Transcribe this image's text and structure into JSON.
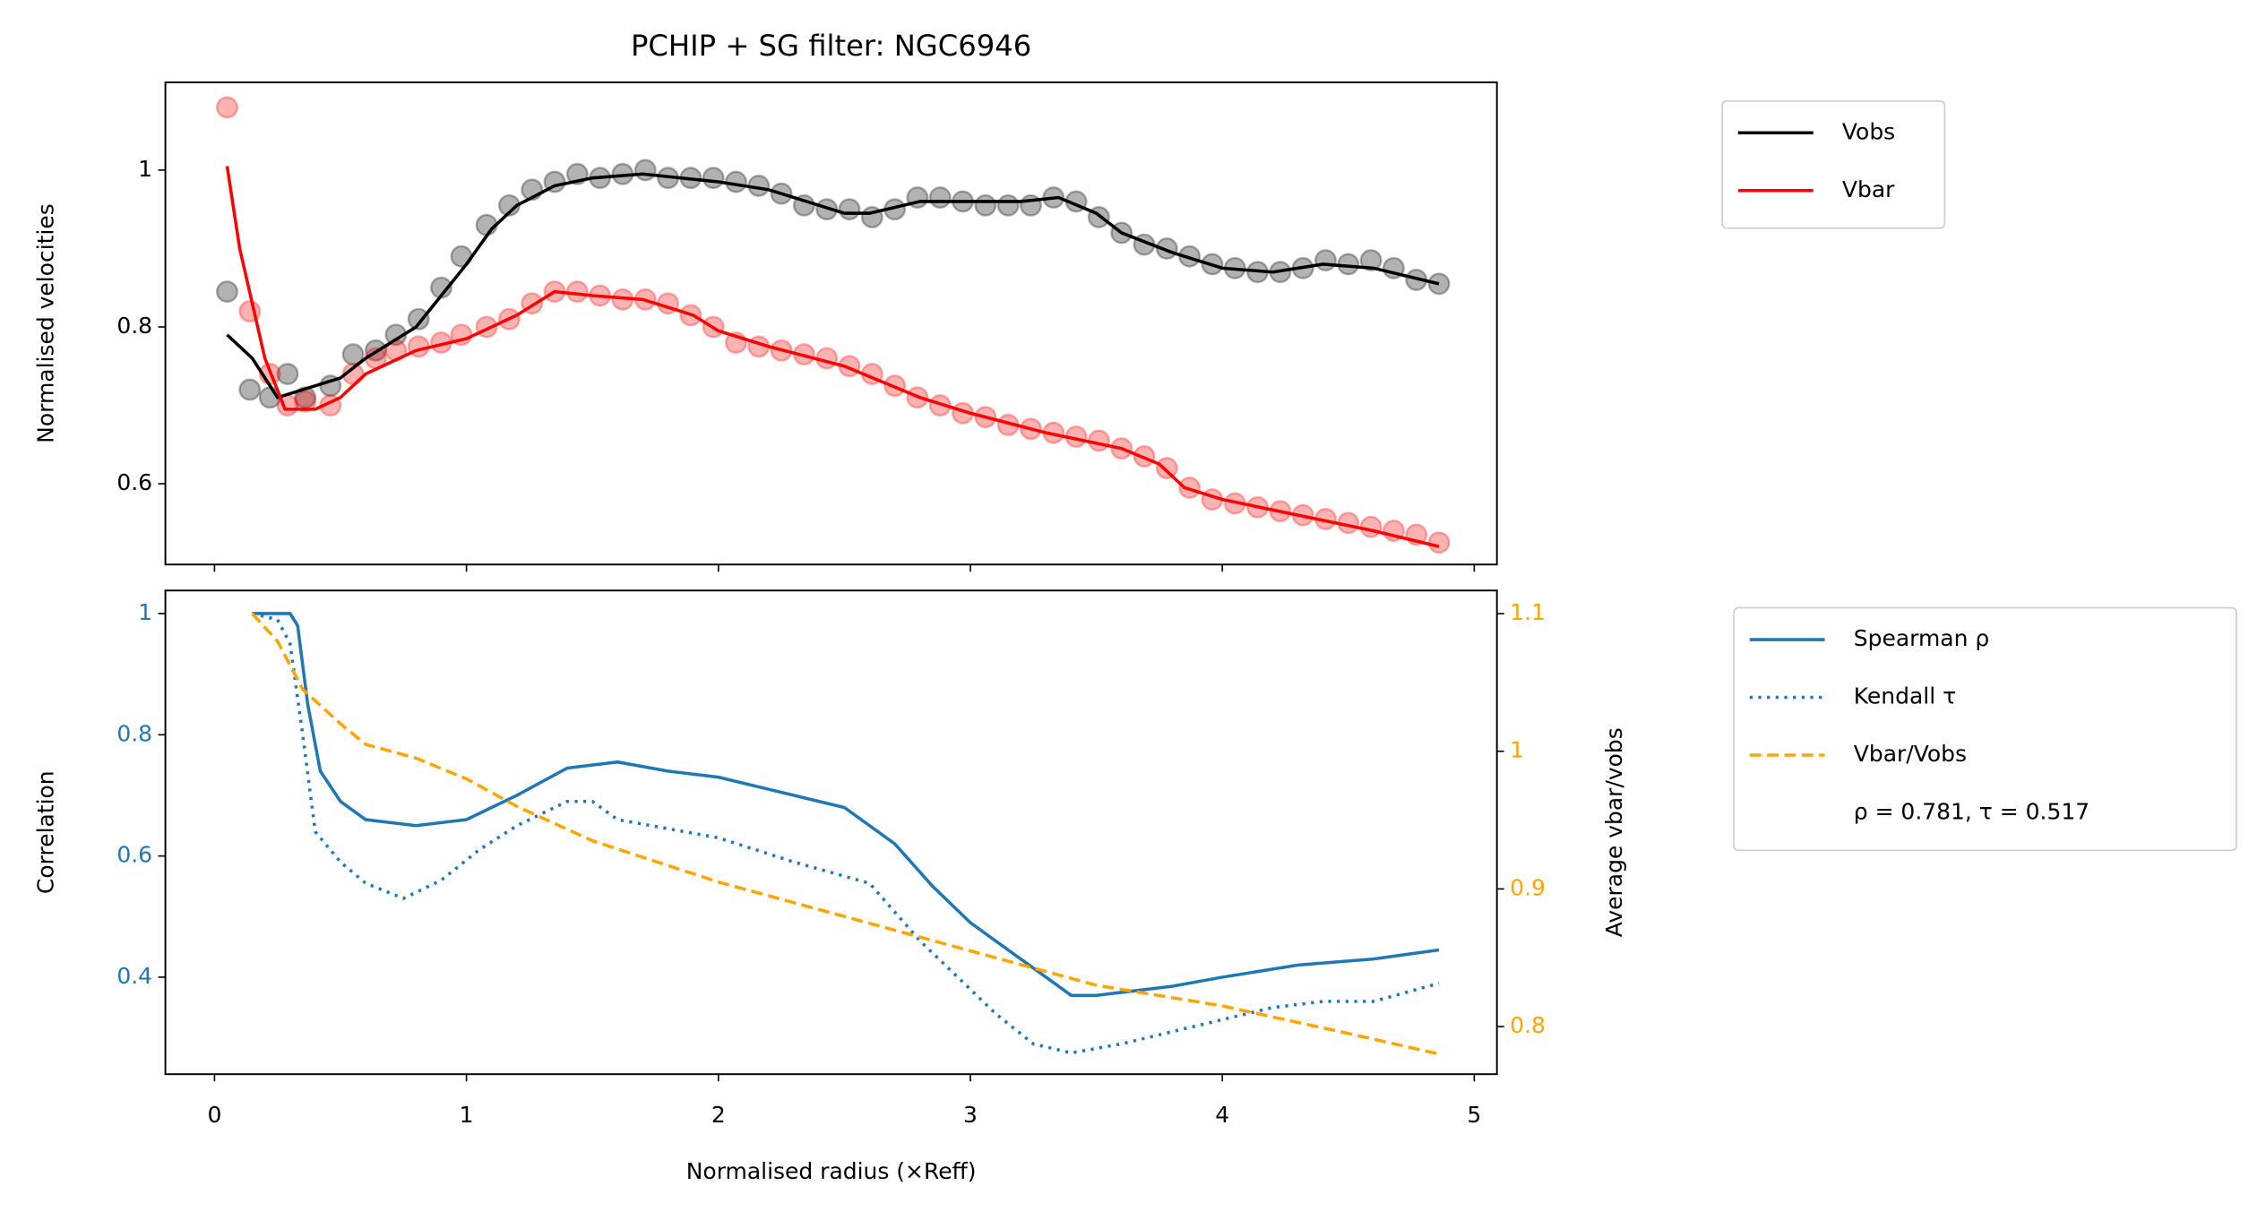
{
  "chart_data": [
    {
      "type": "line",
      "title": "PCHIP + SG filter: NGC6946",
      "ylabel": "Normalised velocities",
      "xlim": [
        -0.195,
        5.09
      ],
      "ylim": [
        0.497,
        1.112
      ],
      "yticks": [
        0.6,
        0.8,
        1.0
      ],
      "legend": "outside right",
      "points": [
        {
          "color": "black",
          "x": [
            0.05,
            0.14,
            0.22,
            0.29,
            0.36,
            0.46,
            0.55,
            0.64,
            0.72,
            0.81,
            0.9,
            0.98,
            1.08,
            1.17,
            1.26,
            1.35,
            1.44,
            1.53,
            1.62,
            1.71,
            1.8,
            1.89,
            1.98,
            2.07,
            2.16,
            2.25,
            2.34,
            2.43,
            2.52,
            2.61,
            2.7,
            2.79,
            2.88,
            2.97,
            3.06,
            3.15,
            3.24,
            3.33,
            3.42,
            3.51,
            3.6,
            3.69,
            3.78,
            3.87,
            3.96,
            4.05,
            4.14,
            4.23,
            4.32,
            4.41,
            4.5,
            4.59,
            4.68,
            4.77,
            4.86
          ],
          "values": [
            0.845,
            0.72,
            0.71,
            0.74,
            0.71,
            0.725,
            0.765,
            0.77,
            0.79,
            0.81,
            0.85,
            0.89,
            0.93,
            0.955,
            0.975,
            0.985,
            0.995,
            0.99,
            0.995,
            1.0,
            0.99,
            0.99,
            0.99,
            0.985,
            0.98,
            0.97,
            0.955,
            0.95,
            0.95,
            0.94,
            0.95,
            0.965,
            0.965,
            0.96,
            0.955,
            0.955,
            0.955,
            0.965,
            0.96,
            0.94,
            0.92,
            0.905,
            0.9,
            0.89,
            0.88,
            0.875,
            0.87,
            0.87,
            0.875,
            0.885,
            0.88,
            0.885,
            0.875,
            0.86,
            0.855
          ]
        },
        {
          "color": "red",
          "x": [
            0.05,
            0.14,
            0.22,
            0.29,
            0.36,
            0.46,
            0.55,
            0.64,
            0.72,
            0.81,
            0.9,
            0.98,
            1.08,
            1.17,
            1.26,
            1.35,
            1.44,
            1.53,
            1.62,
            1.71,
            1.8,
            1.89,
            1.98,
            2.07,
            2.16,
            2.25,
            2.34,
            2.43,
            2.52,
            2.61,
            2.7,
            2.79,
            2.88,
            2.97,
            3.06,
            3.15,
            3.24,
            3.33,
            3.42,
            3.51,
            3.6,
            3.69,
            3.78,
            3.87,
            3.96,
            4.05,
            4.14,
            4.23,
            4.32,
            4.41,
            4.5,
            4.59,
            4.68,
            4.77,
            4.86
          ],
          "values": [
            1.08,
            0.82,
            0.74,
            0.7,
            0.705,
            0.7,
            0.74,
            0.76,
            0.77,
            0.775,
            0.78,
            0.79,
            0.8,
            0.81,
            0.83,
            0.845,
            0.845,
            0.84,
            0.835,
            0.835,
            0.83,
            0.815,
            0.8,
            0.78,
            0.775,
            0.77,
            0.765,
            0.76,
            0.75,
            0.74,
            0.725,
            0.71,
            0.7,
            0.69,
            0.685,
            0.675,
            0.67,
            0.665,
            0.66,
            0.655,
            0.645,
            0.635,
            0.62,
            0.595,
            0.58,
            0.575,
            0.57,
            0.565,
            0.56,
            0.555,
            0.55,
            0.545,
            0.54,
            0.535,
            0.525
          ]
        }
      ],
      "series": [
        {
          "name": "Vobs",
          "color": "black",
          "linestyle": "solid",
          "x": [
            0.05,
            0.15,
            0.25,
            0.35,
            0.5,
            0.6,
            0.8,
            0.9,
            1.0,
            1.1,
            1.2,
            1.35,
            1.5,
            1.7,
            2.0,
            2.2,
            2.4,
            2.5,
            2.6,
            2.8,
            3.0,
            3.2,
            3.35,
            3.5,
            3.6,
            3.8,
            4.0,
            4.2,
            4.4,
            4.6,
            4.86
          ],
          "values": [
            0.79,
            0.76,
            0.71,
            0.72,
            0.735,
            0.76,
            0.8,
            0.84,
            0.88,
            0.925,
            0.955,
            0.98,
            0.99,
            0.995,
            0.985,
            0.975,
            0.955,
            0.945,
            0.945,
            0.96,
            0.96,
            0.96,
            0.965,
            0.945,
            0.92,
            0.895,
            0.875,
            0.87,
            0.88,
            0.875,
            0.855
          ]
        },
        {
          "name": "Vbar",
          "color": "red",
          "linestyle": "solid",
          "x": [
            0.05,
            0.1,
            0.2,
            0.28,
            0.4,
            0.5,
            0.6,
            0.8,
            1.0,
            1.2,
            1.35,
            1.5,
            1.7,
            1.9,
            2.0,
            2.2,
            2.5,
            2.8,
            3.0,
            3.3,
            3.6,
            3.75,
            3.85,
            4.0,
            4.3,
            4.6,
            4.86
          ],
          "values": [
            1.005,
            0.9,
            0.76,
            0.695,
            0.695,
            0.71,
            0.74,
            0.77,
            0.785,
            0.815,
            0.845,
            0.84,
            0.835,
            0.815,
            0.795,
            0.775,
            0.75,
            0.71,
            0.69,
            0.665,
            0.645,
            0.625,
            0.595,
            0.58,
            0.56,
            0.54,
            0.52
          ]
        }
      ]
    },
    {
      "type": "line",
      "xlabel": "Normalised radius (×Reff)",
      "ylabel": "Correlation",
      "y2label": "Average vbar/vobs",
      "xlim": [
        -0.195,
        5.09
      ],
      "xticks": [
        0,
        1,
        2,
        3,
        4,
        5
      ],
      "ylim": [
        0.24,
        1.038
      ],
      "yticks": [
        0.4,
        0.6,
        0.8,
        1.0
      ],
      "ycolor": "#1f77b4",
      "y2lim": [
        0.7654,
        1.1168
      ],
      "y2ticks": [
        0.8,
        0.9,
        1.0,
        1.1
      ],
      "y2color": "orange",
      "legend": "outside right",
      "annotation": "ρ = 0.781, τ = 0.517",
      "series": [
        {
          "name": "Spearman ρ",
          "color": "#1f77b4",
          "linestyle": "solid",
          "x": [
            0.15,
            0.3,
            0.33,
            0.37,
            0.42,
            0.5,
            0.6,
            0.8,
            1.0,
            1.2,
            1.4,
            1.6,
            1.8,
            2.0,
            2.2,
            2.5,
            2.7,
            2.85,
            3.0,
            3.2,
            3.4,
            3.5,
            3.8,
            4.0,
            4.3,
            4.6,
            4.86
          ],
          "values": [
            1.0,
            1.0,
            0.98,
            0.85,
            0.74,
            0.69,
            0.66,
            0.65,
            0.66,
            0.7,
            0.745,
            0.755,
            0.74,
            0.73,
            0.71,
            0.68,
            0.62,
            0.55,
            0.49,
            0.43,
            0.37,
            0.37,
            0.385,
            0.4,
            0.42,
            0.43,
            0.445
          ]
        },
        {
          "name": "Kendall τ",
          "color": "#1f77b4",
          "linestyle": "dotted",
          "x": [
            0.15,
            0.25,
            0.3,
            0.35,
            0.4,
            0.5,
            0.6,
            0.75,
            0.9,
            1.05,
            1.2,
            1.4,
            1.5,
            1.6,
            1.8,
            2.0,
            2.3,
            2.6,
            2.8,
            2.95,
            3.1,
            3.25,
            3.4,
            3.6,
            3.9,
            4.2,
            4.4,
            4.6,
            4.86
          ],
          "values": [
            1.0,
            0.99,
            0.95,
            0.8,
            0.64,
            0.59,
            0.555,
            0.53,
            0.56,
            0.61,
            0.65,
            0.69,
            0.69,
            0.66,
            0.645,
            0.63,
            0.59,
            0.555,
            0.46,
            0.4,
            0.34,
            0.29,
            0.275,
            0.29,
            0.32,
            0.35,
            0.36,
            0.36,
            0.39
          ]
        },
        {
          "name": "Vbar/Vobs",
          "color": "orange",
          "linestyle": "dashed",
          "axis": "y2",
          "x": [
            0.15,
            0.25,
            0.35,
            0.5,
            0.6,
            0.8,
            1.0,
            1.2,
            1.5,
            2.0,
            2.5,
            3.0,
            3.5,
            4.0,
            4.5,
            4.86
          ],
          "values": [
            1.1,
            1.08,
            1.045,
            1.02,
            1.005,
            0.995,
            0.98,
            0.96,
            0.935,
            0.905,
            0.88,
            0.855,
            0.83,
            0.815,
            0.795,
            0.78
          ]
        }
      ]
    }
  ]
}
